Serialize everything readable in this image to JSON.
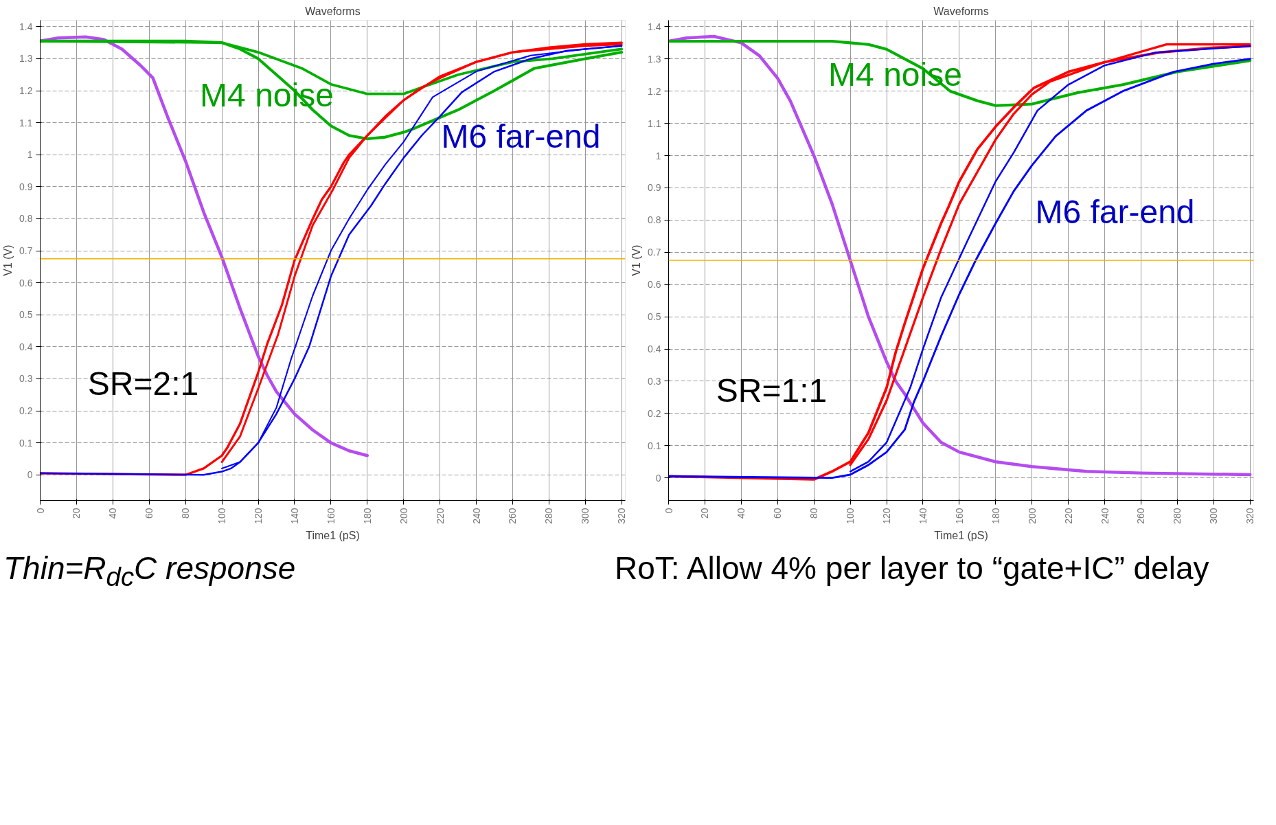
{
  "chart_data": [
    {
      "type": "line",
      "title": "Waveforms",
      "xlabel": "Time1 (pS)",
      "ylabel": "V1 (V)",
      "xlim": [
        0,
        322
      ],
      "ylim": [
        -0.08,
        1.42
      ],
      "xticks": [
        0,
        20,
        40,
        60,
        80,
        100,
        120,
        140,
        160,
        180,
        200,
        220,
        240,
        260,
        280,
        300,
        320
      ],
      "yticks": [
        0,
        0.1,
        0.2,
        0.3,
        0.4,
        0.5,
        0.6,
        0.7,
        0.8,
        0.9,
        1,
        1.1,
        1.2,
        1.3,
        1.4
      ],
      "grid": true,
      "line_style": "solid",
      "ref_lines": [
        {
          "axis": "y",
          "value": 0.675,
          "color": "#f0b000"
        }
      ],
      "series": [
        {
          "color": "#b44cf0",
          "x": [
            0,
            10,
            25,
            35,
            45,
            55,
            62,
            70,
            80,
            90,
            100,
            110,
            120,
            125,
            130,
            140,
            150,
            160,
            170,
            180
          ],
          "values": [
            1.355,
            1.365,
            1.368,
            1.36,
            1.33,
            1.28,
            1.24,
            1.12,
            0.98,
            0.82,
            0.68,
            0.52,
            0.37,
            0.31,
            0.26,
            0.19,
            0.14,
            0.1,
            0.075,
            0.06
          ]
        },
        {
          "color": "#00b000",
          "x": [
            0,
            80,
            100,
            110,
            120,
            130,
            140,
            150,
            160,
            170,
            180,
            190,
            200,
            205,
            230,
            250,
            272,
            300,
            320
          ],
          "values": [
            1.355,
            1.355,
            1.35,
            1.33,
            1.3,
            1.25,
            1.2,
            1.14,
            1.09,
            1.06,
            1.05,
            1.055,
            1.07,
            1.08,
            1.14,
            1.2,
            1.27,
            1.3,
            1.32
          ]
        },
        {
          "color": "#00b000",
          "x": [
            0,
            100,
            120,
            144,
            160,
            180,
            200,
            210,
            230,
            260,
            282,
            320
          ],
          "values": [
            1.355,
            1.35,
            1.32,
            1.27,
            1.22,
            1.19,
            1.19,
            1.21,
            1.25,
            1.29,
            1.3,
            1.33
          ]
        },
        {
          "color": "#ff0000",
          "x": [
            0,
            80,
            90,
            100,
            103,
            110,
            115,
            120,
            125,
            133,
            140,
            150,
            155,
            160,
            167,
            170,
            180,
            190,
            200,
            210,
            220,
            240,
            260,
            280,
            300,
            320
          ],
          "values": [
            0.005,
            0,
            0.02,
            0.06,
            0.085,
            0.16,
            0.24,
            0.32,
            0.41,
            0.53,
            0.67,
            0.8,
            0.86,
            0.9,
            0.975,
            1.0,
            1.06,
            1.12,
            1.17,
            1.21,
            1.24,
            1.29,
            1.32,
            1.335,
            1.345,
            1.35
          ]
        },
        {
          "color": "#ff0000",
          "x": [
            100,
            110,
            120,
            131,
            140,
            150,
            161,
            170,
            180,
            200,
            220,
            240,
            260,
            300,
            320
          ],
          "values": [
            0.04,
            0.12,
            0.27,
            0.44,
            0.62,
            0.78,
            0.89,
            0.99,
            1.06,
            1.17,
            1.245,
            1.29,
            1.32,
            1.34,
            1.345
          ]
        },
        {
          "color": "#0000ff",
          "x": [
            0,
            90,
            100,
            105,
            110,
            120,
            130,
            140,
            148,
            160,
            170,
            182,
            190,
            200,
            210,
            220,
            232,
            250,
            270,
            290,
            320
          ],
          "values": [
            0.005,
            0,
            0.01,
            0.02,
            0.04,
            0.1,
            0.19,
            0.3,
            0.4,
            0.62,
            0.75,
            0.84,
            0.91,
            0.99,
            1.06,
            1.12,
            1.195,
            1.26,
            1.3,
            1.325,
            1.34
          ]
        },
        {
          "color": "#0000ff",
          "x": [
            100,
            110,
            120,
            130,
            138,
            150,
            160,
            170,
            180,
            190,
            200,
            216,
            240,
            270,
            300,
            320
          ],
          "values": [
            0.02,
            0.04,
            0.1,
            0.21,
            0.36,
            0.56,
            0.7,
            0.8,
            0.89,
            0.97,
            1.04,
            1.18,
            1.26,
            1.31,
            1.33,
            1.34
          ]
        }
      ],
      "annotations": [
        "M4 noise",
        "M6 far-end",
        "SR=2:1"
      ]
    },
    {
      "type": "line",
      "title": "Waveforms",
      "xlabel": "Time1 (pS)",
      "ylabel": "V1 (V)",
      "xlim": [
        0,
        322
      ],
      "ylim": [
        -0.07,
        1.42
      ],
      "xticks": [
        0,
        20,
        40,
        60,
        80,
        100,
        120,
        140,
        160,
        180,
        200,
        220,
        240,
        260,
        280,
        300,
        320
      ],
      "yticks": [
        0,
        0.1,
        0.2,
        0.3,
        0.4,
        0.5,
        0.6,
        0.7,
        0.8,
        0.9,
        1,
        1.1,
        1.2,
        1.3,
        1.4
      ],
      "grid": true,
      "line_style": "solid",
      "ref_lines": [
        {
          "axis": "y",
          "value": 0.675,
          "color": "#f0b000"
        }
      ],
      "series": [
        {
          "color": "#b44cf0",
          "x": [
            0,
            10,
            25,
            40,
            50,
            60,
            67,
            80,
            90,
            98,
            110,
            120,
            125,
            130,
            140,
            150,
            160,
            180,
            200,
            230,
            260,
            320
          ],
          "values": [
            1.355,
            1.365,
            1.37,
            1.35,
            1.31,
            1.24,
            1.17,
            1.0,
            0.85,
            0.71,
            0.5,
            0.36,
            0.3,
            0.26,
            0.17,
            0.11,
            0.08,
            0.05,
            0.035,
            0.02,
            0.015,
            0.01
          ]
        },
        {
          "color": "#00b000",
          "x": [
            0,
            90,
            100,
            110,
            120,
            140,
            155,
            170,
            180,
            200,
            225,
            250,
            280,
            320
          ],
          "values": [
            1.355,
            1.355,
            1.35,
            1.345,
            1.33,
            1.27,
            1.2,
            1.17,
            1.155,
            1.16,
            1.195,
            1.22,
            1.26,
            1.295
          ]
        },
        {
          "color": "#ff0000",
          "x": [
            0,
            80,
            90,
            100,
            110,
            120,
            125,
            130,
            140,
            150,
            154,
            160,
            170,
            180,
            190,
            201,
            220,
            240,
            270,
            300,
            320
          ],
          "values": [
            0.005,
            -0.005,
            0.02,
            0.05,
            0.14,
            0.28,
            0.39,
            0.48,
            0.65,
            0.79,
            0.84,
            0.92,
            1.02,
            1.09,
            1.15,
            1.21,
            1.26,
            1.29,
            1.32,
            1.335,
            1.34
          ]
        },
        {
          "color": "#ff0000",
          "x": [
            100,
            110,
            120,
            130,
            140,
            150,
            160,
            170,
            180,
            190,
            200,
            210,
            240,
            274,
            320
          ],
          "values": [
            0.04,
            0.12,
            0.24,
            0.4,
            0.56,
            0.71,
            0.85,
            0.95,
            1.05,
            1.13,
            1.19,
            1.23,
            1.29,
            1.345,
            1.345
          ]
        },
        {
          "color": "#0000ff",
          "x": [
            0,
            90,
            100,
            110,
            120,
            130,
            135,
            140,
            150,
            160,
            169,
            180,
            190,
            200,
            213,
            230,
            250,
            278,
            300,
            320
          ],
          "values": [
            0.005,
            0,
            0.01,
            0.04,
            0.08,
            0.15,
            0.235,
            0.3,
            0.44,
            0.57,
            0.675,
            0.79,
            0.89,
            0.97,
            1.06,
            1.14,
            1.2,
            1.26,
            1.285,
            1.3
          ]
        },
        {
          "color": "#0000ff",
          "x": [
            100,
            110,
            120,
            133,
            140,
            150,
            164,
            180,
            190,
            203,
            220,
            240,
            268,
            320
          ],
          "values": [
            0.02,
            0.05,
            0.11,
            0.28,
            0.4,
            0.56,
            0.73,
            0.92,
            1.01,
            1.14,
            1.22,
            1.28,
            1.32,
            1.34
          ]
        }
      ],
      "annotations": [
        "M4 noise",
        "M6 far-end",
        "SR=1:1"
      ]
    },
    {
      "type": "other",
      "annotations": [
        "Thin=R$_{dc}$C response",
        "RoT: Allow 4% per layer to “gate+IC” delay"
      ]
    }
  ]
}
